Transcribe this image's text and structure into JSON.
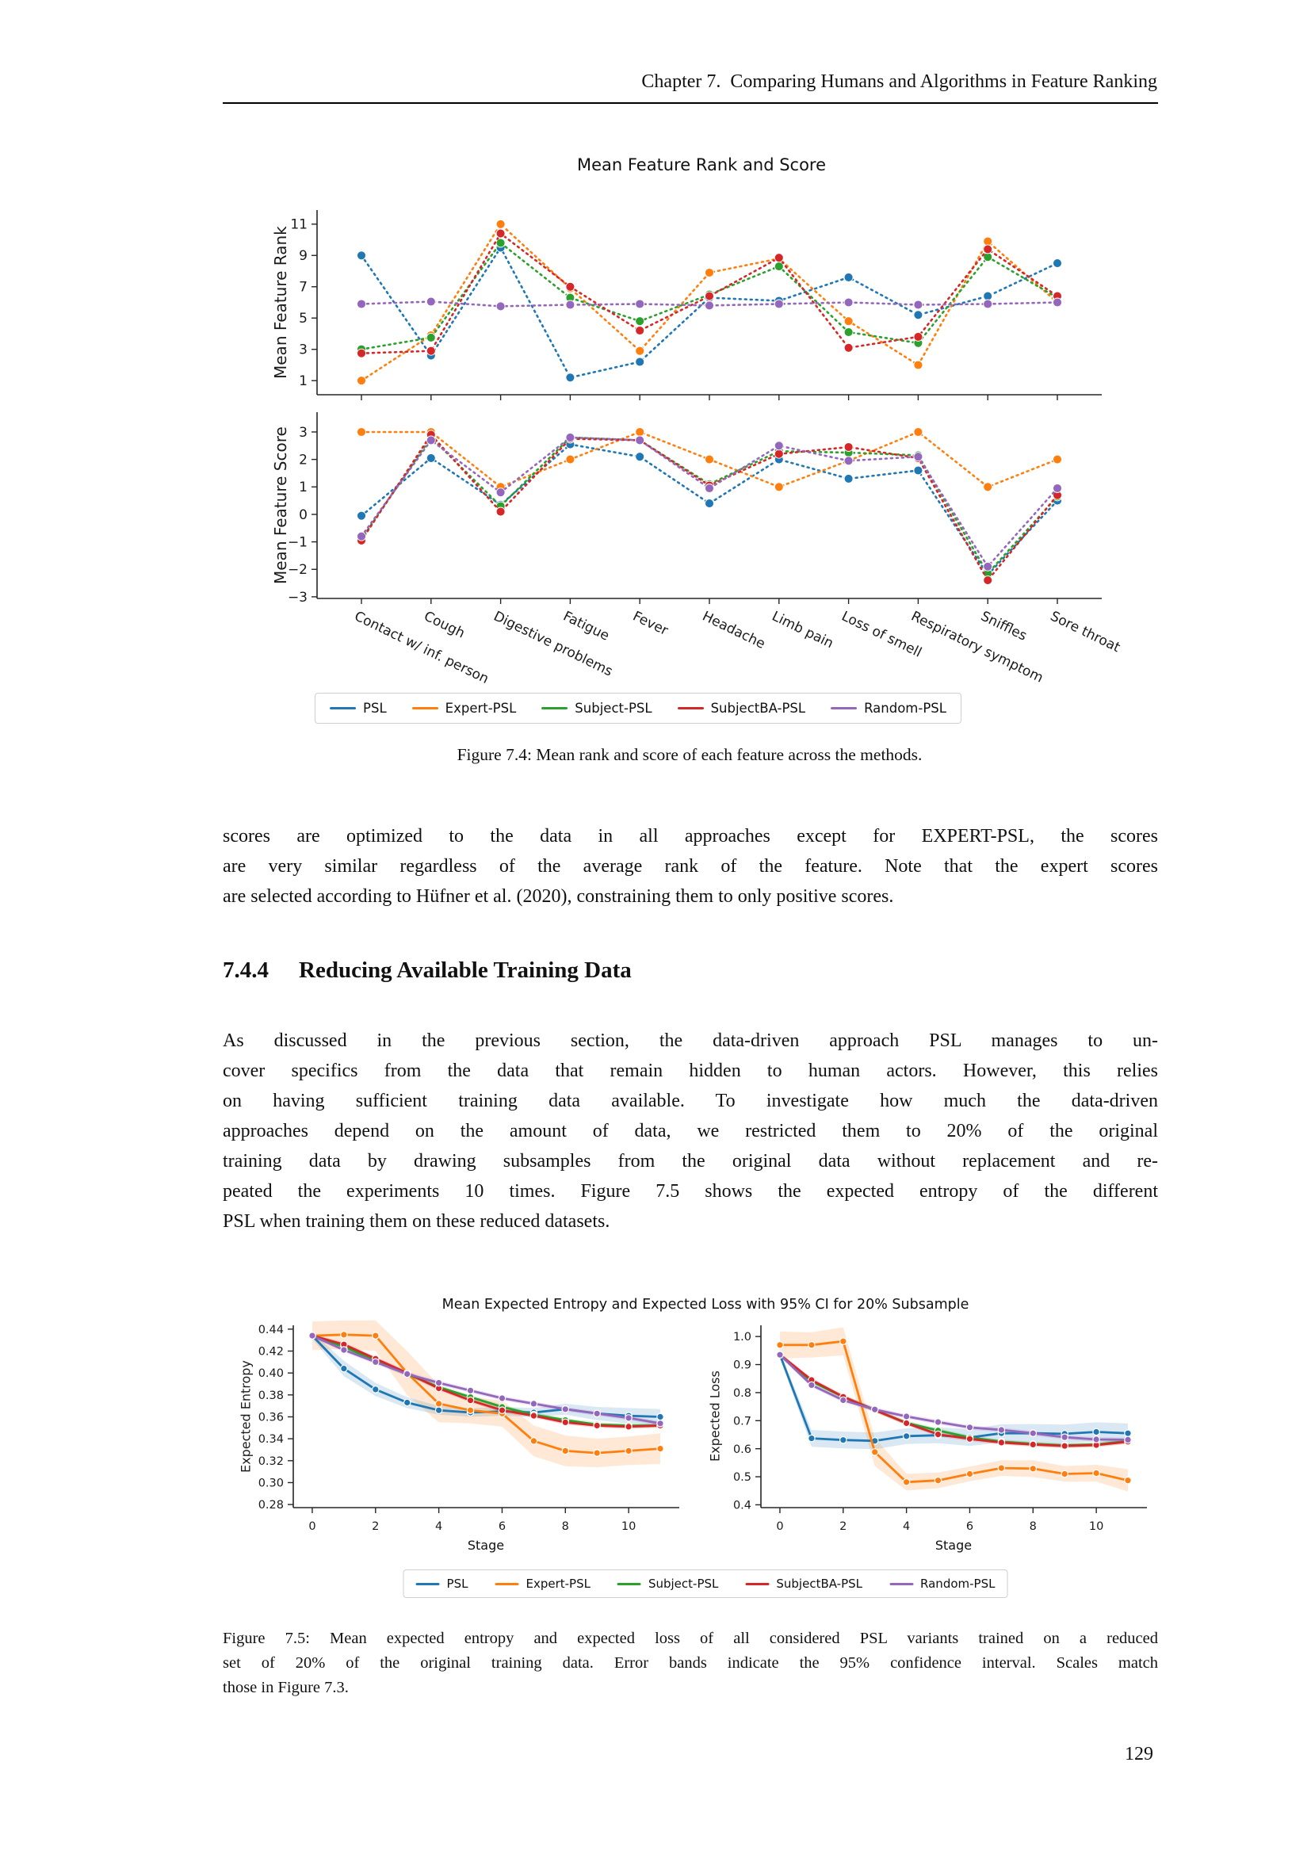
{
  "page": {
    "number": "129"
  },
  "header": {
    "chapter_title": "Chapter 7.  Comparing Humans and Algorithms in Feature Ranking"
  },
  "figure74": {
    "caption": "Figure 7.4: Mean rank and score of each feature across the methods."
  },
  "body": {
    "para1_lines": [
      "scores are optimized to the data in all approaches except for EXPERT-PSL, the scores",
      "are very similar regardless of the average rank of the feature. Note that the expert scores",
      "are selected according to Hüfner et al. (2020), constraining them to only positive scores."
    ],
    "section": {
      "number": "7.4.4",
      "title": "Reducing Available Training Data"
    },
    "para2_lines": [
      "As discussed in the previous section, the data-driven approach PSL manages to un-",
      "cover specifics from the data that remain hidden to human actors. However, this relies",
      "on having sufficient training data available. To investigate how much the data-driven",
      "approaches depend on the amount of data, we restricted them to 20% of the original",
      "training data by drawing subsamples from the original data without replacement and re-",
      "peated the experiments 10 times. Figure 7.5 shows the expected entropy of the different",
      "PSL when training them on these reduced datasets."
    ]
  },
  "figure75": {
    "caption_lines": [
      "Figure 7.5: Mean expected entropy and expected loss of all considered PSL variants trained on a reduced",
      "set of 20% of the original training data. Error bands indicate the 95% confidence interval. Scales match",
      "those in Figure 7.3."
    ]
  },
  "legend": {
    "entries": [
      {
        "label": "PSL",
        "color": "#1f77b4"
      },
      {
        "label": "Expert-PSL",
        "color": "#ff7f0e"
      },
      {
        "label": "Subject-PSL",
        "color": "#2ca02c"
      },
      {
        "label": "SubjectBA-PSL",
        "color": "#d62728"
      },
      {
        "label": "Random-PSL",
        "color": "#9467bd"
      }
    ]
  },
  "chart_data": [
    {
      "id": "rank",
      "type": "line",
      "line_style": "dotted",
      "title": "Mean Feature Rank and Score",
      "ylabel": "Mean Feature Rank",
      "ylim": [
        0.1,
        11.9
      ],
      "yticks": [
        1,
        3,
        5,
        7,
        9,
        11
      ],
      "categories": [
        "Contact w/ inf. person",
        "Cough",
        "Digestive problems",
        "Fatigue",
        "Fever",
        "Headache",
        "Limb pain",
        "Loss of smell",
        "Respiratory symptom",
        "Sniffles",
        "Sore throat"
      ],
      "series": [
        {
          "name": "PSL",
          "color": "#1f77b4",
          "values": [
            9.0,
            2.6,
            9.5,
            1.2,
            2.2,
            6.3,
            6.1,
            7.6,
            5.2,
            6.4,
            8.5
          ]
        },
        {
          "name": "Expert-PSL",
          "color": "#ff7f0e",
          "values": [
            1.0,
            3.9,
            11.0,
            6.9,
            2.9,
            7.9,
            8.8,
            4.8,
            2.0,
            9.9,
            6.0
          ]
        },
        {
          "name": "Subject-PSL",
          "color": "#2ca02c",
          "values": [
            3.0,
            3.75,
            9.8,
            6.3,
            4.8,
            6.5,
            8.3,
            4.1,
            3.4,
            8.9,
            6.3
          ]
        },
        {
          "name": "SubjectBA-PSL",
          "color": "#d62728",
          "values": [
            2.75,
            2.9,
            10.4,
            7.0,
            4.2,
            6.4,
            8.85,
            3.1,
            3.8,
            9.4,
            6.4
          ]
        },
        {
          "name": "Random-PSL",
          "color": "#9467bd",
          "values": [
            5.9,
            6.05,
            5.75,
            5.85,
            5.9,
            5.8,
            5.9,
            6.0,
            5.85,
            5.9,
            6.0
          ]
        }
      ]
    },
    {
      "id": "score",
      "type": "line",
      "line_style": "dotted",
      "ylabel": "Mean Feature Score",
      "ylim": [
        -3.06,
        3.72
      ],
      "yticks": [
        -3,
        -2,
        -1,
        0,
        1,
        2,
        3
      ],
      "categories": [
        "Contact w/ inf. person",
        "Cough",
        "Digestive problems",
        "Fatigue",
        "Fever",
        "Headache",
        "Limb pain",
        "Loss of smell",
        "Respiratory symptom",
        "Sniffles",
        "Sore throat"
      ],
      "series": [
        {
          "name": "PSL",
          "color": "#1f77b4",
          "values": [
            -0.05,
            2.05,
            0.35,
            2.55,
            2.1,
            0.4,
            2.0,
            1.3,
            1.6,
            -2.2,
            0.5
          ]
        },
        {
          "name": "Expert-PSL",
          "color": "#ff7f0e",
          "values": [
            3.0,
            3.0,
            1.0,
            2.0,
            3.0,
            2.0,
            1.0,
            1.95,
            3.0,
            1.0,
            2.0
          ]
        },
        {
          "name": "Subject-PSL",
          "color": "#2ca02c",
          "values": [
            -0.9,
            2.8,
            0.3,
            2.8,
            2.7,
            1.1,
            2.3,
            2.25,
            2.15,
            -2.15,
            0.65
          ]
        },
        {
          "name": "SubjectBA-PSL",
          "color": "#d62728",
          "values": [
            -0.95,
            2.9,
            0.1,
            2.75,
            2.7,
            1.05,
            2.2,
            2.45,
            2.05,
            -2.4,
            0.7
          ]
        },
        {
          "name": "Random-PSL",
          "color": "#9467bd",
          "values": [
            -0.8,
            2.7,
            0.8,
            2.8,
            2.7,
            0.95,
            2.5,
            1.95,
            2.1,
            -1.9,
            0.95
          ]
        }
      ]
    },
    {
      "id": "entropy",
      "type": "line",
      "line_style": "solid",
      "title": "Mean Expected Entropy and Expected Loss with 95% CI for 20% Subsample",
      "xlabel": "Stage",
      "ylabel": "Expected Entropy",
      "x": [
        0,
        1,
        2,
        3,
        4,
        5,
        6,
        7,
        8,
        9,
        10,
        11
      ],
      "xticks": [
        0,
        2,
        4,
        6,
        8,
        10
      ],
      "ylim": [
        0.2772,
        0.4435
      ],
      "yticks": [
        0.28,
        0.3,
        0.32,
        0.34,
        0.36,
        0.38,
        0.4,
        0.42,
        0.44
      ],
      "ytick_decimals": 2,
      "series": [
        {
          "name": "PSL",
          "color": "#1f77b4",
          "values": [
            0.434,
            0.404,
            0.385,
            0.373,
            0.366,
            0.364,
            0.365,
            0.364,
            0.367,
            0.363,
            0.361,
            0.36
          ],
          "ci": [
            0.003,
            0.007,
            0.006,
            0.005,
            0.004,
            0.004,
            0.004,
            0.004,
            0.005,
            0.006,
            0.007,
            0.007
          ]
        },
        {
          "name": "Expert-PSL",
          "color": "#ff7f0e",
          "values": [
            0.434,
            0.435,
            0.434,
            0.4,
            0.372,
            0.366,
            0.363,
            0.338,
            0.329,
            0.327,
            0.329,
            0.331
          ],
          "ci": [
            0.013,
            0.013,
            0.014,
            0.02,
            0.017,
            0.012,
            0.012,
            0.014,
            0.014,
            0.013,
            0.013,
            0.014
          ]
        },
        {
          "name": "Subject-PSL",
          "color": "#2ca02c",
          "values": [
            0.434,
            0.424,
            0.411,
            0.399,
            0.387,
            0.378,
            0.369,
            0.362,
            0.357,
            0.353,
            0.352,
            0.352
          ],
          "ci_const": 0.002
        },
        {
          "name": "SubjectBA-PSL",
          "color": "#d62728",
          "values": [
            0.434,
            0.426,
            0.413,
            0.4,
            0.386,
            0.375,
            0.366,
            0.361,
            0.355,
            0.352,
            0.351,
            0.352
          ],
          "ci_const": 0.002
        },
        {
          "name": "Random-PSL",
          "color": "#9467bd",
          "values": [
            0.434,
            0.421,
            0.41,
            0.399,
            0.391,
            0.384,
            0.377,
            0.372,
            0.367,
            0.363,
            0.359,
            0.354
          ],
          "ci_const": 0.002
        }
      ]
    },
    {
      "id": "loss",
      "type": "line",
      "line_style": "solid",
      "xlabel": "Stage",
      "ylabel": "Expected Loss",
      "x": [
        0,
        1,
        2,
        3,
        4,
        5,
        6,
        7,
        8,
        9,
        10,
        11
      ],
      "xticks": [
        0,
        2,
        4,
        6,
        8,
        10
      ],
      "ylim": [
        0.39,
        1.04
      ],
      "yticks": [
        0.4,
        0.5,
        0.6,
        0.7,
        0.8,
        0.9,
        1.0
      ],
      "ytick_decimals": 1,
      "series": [
        {
          "name": "PSL",
          "color": "#1f77b4",
          "values": [
            0.935,
            0.637,
            0.631,
            0.628,
            0.645,
            0.648,
            0.64,
            0.655,
            0.655,
            0.653,
            0.66,
            0.655
          ],
          "ci": [
            0.01,
            0.03,
            0.03,
            0.03,
            0.028,
            0.028,
            0.03,
            0.032,
            0.033,
            0.033,
            0.034,
            0.035
          ]
        },
        {
          "name": "Expert-PSL",
          "color": "#ff7f0e",
          "values": [
            0.97,
            0.97,
            0.983,
            0.588,
            0.481,
            0.487,
            0.51,
            0.531,
            0.529,
            0.51,
            0.513,
            0.487
          ],
          "ci": [
            0.048,
            0.045,
            0.05,
            0.05,
            0.03,
            0.028,
            0.026,
            0.028,
            0.03,
            0.028,
            0.03,
            0.04
          ]
        },
        {
          "name": "Subject-PSL",
          "color": "#2ca02c",
          "values": [
            0.935,
            0.84,
            0.785,
            0.738,
            0.692,
            0.665,
            0.64,
            0.625,
            0.617,
            0.612,
            0.615,
            0.627
          ],
          "ci_const": 0.008
        },
        {
          "name": "SubjectBA-PSL",
          "color": "#d62728",
          "values": [
            0.935,
            0.845,
            0.785,
            0.738,
            0.691,
            0.651,
            0.635,
            0.622,
            0.615,
            0.61,
            0.613,
            0.625
          ],
          "ci_const": 0.008
        },
        {
          "name": "Random-PSL",
          "color": "#9467bd",
          "values": [
            0.935,
            0.827,
            0.773,
            0.74,
            0.715,
            0.695,
            0.676,
            0.667,
            0.655,
            0.641,
            0.633,
            0.632
          ],
          "ci_const": 0.008
        }
      ]
    }
  ]
}
